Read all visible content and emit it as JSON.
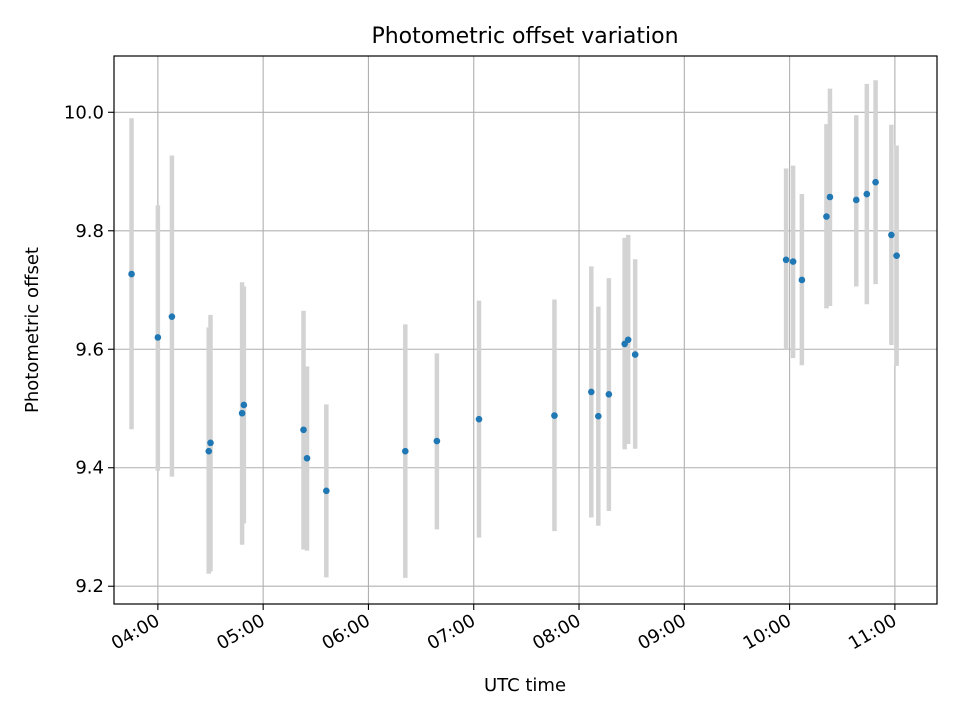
{
  "chart_data": {
    "type": "scatter",
    "title": "Photometric offset variation",
    "xlabel": "UTC time",
    "ylabel": "Photometric offset",
    "x_axis_type": "time",
    "xlim": [
      "03:35",
      "11:24"
    ],
    "ylim": [
      9.17,
      10.095
    ],
    "x_ticks": [
      "04:00",
      "05:00",
      "06:00",
      "07:00",
      "08:00",
      "09:00",
      "10:00",
      "11:00"
    ],
    "y_ticks": [
      9.2,
      9.4,
      9.6,
      9.8,
      10.0
    ],
    "y_tick_labels": [
      "9.2",
      "9.4",
      "9.6",
      "9.8",
      "10.0"
    ],
    "grid": true,
    "colors": {
      "points": "#1f77b4",
      "errorbars": "#d3d3d3",
      "grid": "#b0b0b0"
    },
    "points": [
      {
        "t": "03:45",
        "y": 9.727,
        "lo": 9.465,
        "hi": 9.99
      },
      {
        "t": "04:00",
        "y": 9.62,
        "lo": 9.395,
        "hi": 9.843
      },
      {
        "t": "04:08",
        "y": 9.655,
        "lo": 9.385,
        "hi": 9.927
      },
      {
        "t": "04:29",
        "y": 9.428,
        "lo": 9.221,
        "hi": 9.637
      },
      {
        "t": "04:30",
        "y": 9.442,
        "lo": 9.225,
        "hi": 9.658
      },
      {
        "t": "04:48",
        "y": 9.492,
        "lo": 9.27,
        "hi": 9.713
      },
      {
        "t": "04:49",
        "y": 9.506,
        "lo": 9.306,
        "hi": 9.706
      },
      {
        "t": "05:23",
        "y": 9.464,
        "lo": 9.262,
        "hi": 9.665
      },
      {
        "t": "05:25",
        "y": 9.416,
        "lo": 9.26,
        "hi": 9.571
      },
      {
        "t": "05:36",
        "y": 9.361,
        "lo": 9.215,
        "hi": 9.507
      },
      {
        "t": "06:21",
        "y": 9.428,
        "lo": 9.214,
        "hi": 9.642
      },
      {
        "t": "06:39",
        "y": 9.445,
        "lo": 9.296,
        "hi": 9.593
      },
      {
        "t": "07:03",
        "y": 9.482,
        "lo": 9.282,
        "hi": 9.682
      },
      {
        "t": "07:46",
        "y": 9.488,
        "lo": 9.293,
        "hi": 9.684
      },
      {
        "t": "08:07",
        "y": 9.528,
        "lo": 9.316,
        "hi": 9.74
      },
      {
        "t": "08:11",
        "y": 9.487,
        "lo": 9.302,
        "hi": 9.672
      },
      {
        "t": "08:17",
        "y": 9.524,
        "lo": 9.327,
        "hi": 9.72
      },
      {
        "t": "08:26",
        "y": 9.609,
        "lo": 9.431,
        "hi": 9.788
      },
      {
        "t": "08:28",
        "y": 9.616,
        "lo": 9.44,
        "hi": 9.793
      },
      {
        "t": "08:32",
        "y": 9.591,
        "lo": 9.432,
        "hi": 9.752
      },
      {
        "t": "09:58",
        "y": 9.751,
        "lo": 9.6,
        "hi": 9.905
      },
      {
        "t": "10:02",
        "y": 9.748,
        "lo": 9.585,
        "hi": 9.91
      },
      {
        "t": "10:07",
        "y": 9.717,
        "lo": 9.573,
        "hi": 9.862
      },
      {
        "t": "10:21",
        "y": 9.824,
        "lo": 9.669,
        "hi": 9.98
      },
      {
        "t": "10:23",
        "y": 9.857,
        "lo": 9.673,
        "hi": 10.04
      },
      {
        "t": "10:38",
        "y": 9.852,
        "lo": 9.706,
        "hi": 9.995
      },
      {
        "t": "10:44",
        "y": 9.862,
        "lo": 9.676,
        "hi": 10.048
      },
      {
        "t": "10:49",
        "y": 9.882,
        "lo": 9.71,
        "hi": 10.054
      },
      {
        "t": "10:58",
        "y": 9.793,
        "lo": 9.607,
        "hi": 9.979
      },
      {
        "t": "11:01",
        "y": 9.758,
        "lo": 9.572,
        "hi": 9.944
      }
    ]
  }
}
